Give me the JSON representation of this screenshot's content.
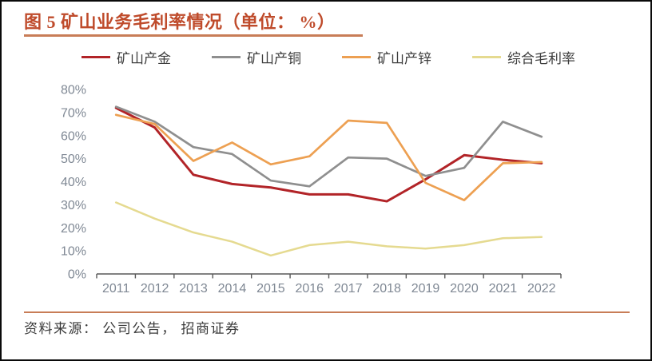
{
  "header": {
    "title": "图 5 矿山业务毛利率情况（单位： %）"
  },
  "source": {
    "text": "资料来源： 公司公告， 招商证券"
  },
  "colors": {
    "title": "#bf4b2b",
    "rule": "#c87d57",
    "axis_line": "#595959",
    "axis_label": "#7f8894",
    "legend_text": "#3d3d3d",
    "series_gold": "#b22428",
    "series_copper": "#8f8f8f",
    "series_zinc": "#eda052",
    "series_composite": "#e5da90"
  },
  "chart_data": {
    "type": "line",
    "title": "图 5 矿山业务毛利率情况（单位： %）",
    "xlabel": "",
    "ylabel": "",
    "x": [
      "2011",
      "2012",
      "2013",
      "2014",
      "2015",
      "2016",
      "2017",
      "2018",
      "2019",
      "2020",
      "2021",
      "2022"
    ],
    "y_tick_labels": [
      "0%",
      "10%",
      "20%",
      "30%",
      "40%",
      "50%",
      "60%",
      "70%",
      "80%"
    ],
    "ylim": [
      0,
      80
    ],
    "grid": false,
    "legend_position": "top",
    "series": [
      {
        "name": "矿山产金",
        "color": "#b22428",
        "stroke_width": 3.0,
        "values": [
          72,
          63.5,
          43,
          39,
          37.5,
          34.5,
          34.5,
          31.5,
          41,
          51.5,
          49.5,
          48
        ]
      },
      {
        "name": "矿山产铜",
        "color": "#8f8f8f",
        "stroke_width": 2.7,
        "values": [
          72.5,
          66,
          55,
          52,
          40.5,
          38,
          50.5,
          50,
          42.5,
          46,
          66,
          59.5
        ]
      },
      {
        "name": "矿山产锌",
        "color": "#eda052",
        "stroke_width": 2.7,
        "values": [
          69,
          65,
          49,
          57,
          47.5,
          51,
          66.5,
          65.5,
          39.5,
          32,
          48,
          48.5
        ]
      },
      {
        "name": "综合毛利率",
        "color": "#e5da90",
        "stroke_width": 2.5,
        "values": [
          31,
          24,
          18,
          14,
          8,
          12.5,
          14,
          12,
          11,
          12.5,
          15.5,
          16
        ]
      }
    ]
  }
}
